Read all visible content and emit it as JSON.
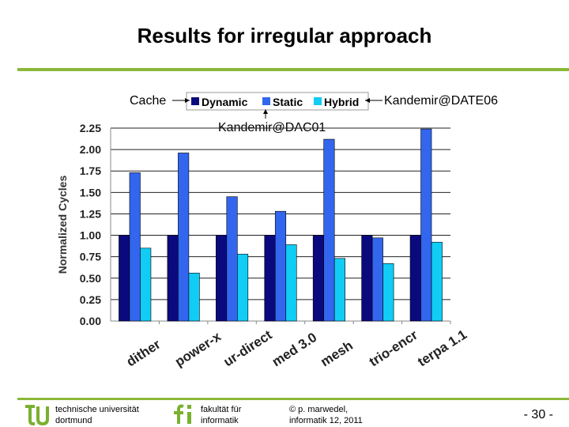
{
  "slide": {
    "title": "Results for irregular approach",
    "page_number": "- 30 -"
  },
  "annotations": {
    "cache": "Cache",
    "date06": "Kandemir@DATE06",
    "dac01": "Kandemir@DAC01"
  },
  "footer": {
    "university_line1": "technische universität",
    "university_line2": "dortmund",
    "faculty_line1": "fakultät für",
    "faculty_line2": "informatik",
    "author_line1": "© p. marwedel,",
    "author_line2": "informatik 12,  2011"
  },
  "colors": {
    "accent_green": "#8ab83a",
    "logo_green": "#7ab030",
    "dynamic": "#0a0a7e",
    "static": "#3366ee",
    "hybrid": "#11ccf5"
  },
  "chart_data": {
    "type": "bar",
    "title": "",
    "xlabel": "",
    "ylabel": "Normalized Cycles",
    "ylim": [
      0,
      2.25
    ],
    "yticks": [
      "0.00",
      "0.25",
      "0.50",
      "0.75",
      "1.00",
      "1.25",
      "1.50",
      "1.75",
      "2.00",
      "2.25"
    ],
    "grid": true,
    "legend_position": "top-center",
    "categories": [
      "dither",
      "power-x",
      "ur-direct",
      "med 3.0",
      "mesh",
      "trio-encr",
      "terpa 1.1"
    ],
    "series": [
      {
        "name": "Dynamic",
        "color": "#0a0a7e",
        "values": [
          1.0,
          1.0,
          1.0,
          1.0,
          1.0,
          1.0,
          1.0
        ]
      },
      {
        "name": "Static",
        "color": "#3366ee",
        "values": [
          1.73,
          1.96,
          1.45,
          1.28,
          2.12,
          0.97,
          2.24
        ]
      },
      {
        "name": "Hybrid",
        "color": "#11ccf5",
        "values": [
          0.85,
          0.56,
          0.78,
          0.89,
          0.73,
          0.67,
          0.92
        ]
      }
    ]
  }
}
